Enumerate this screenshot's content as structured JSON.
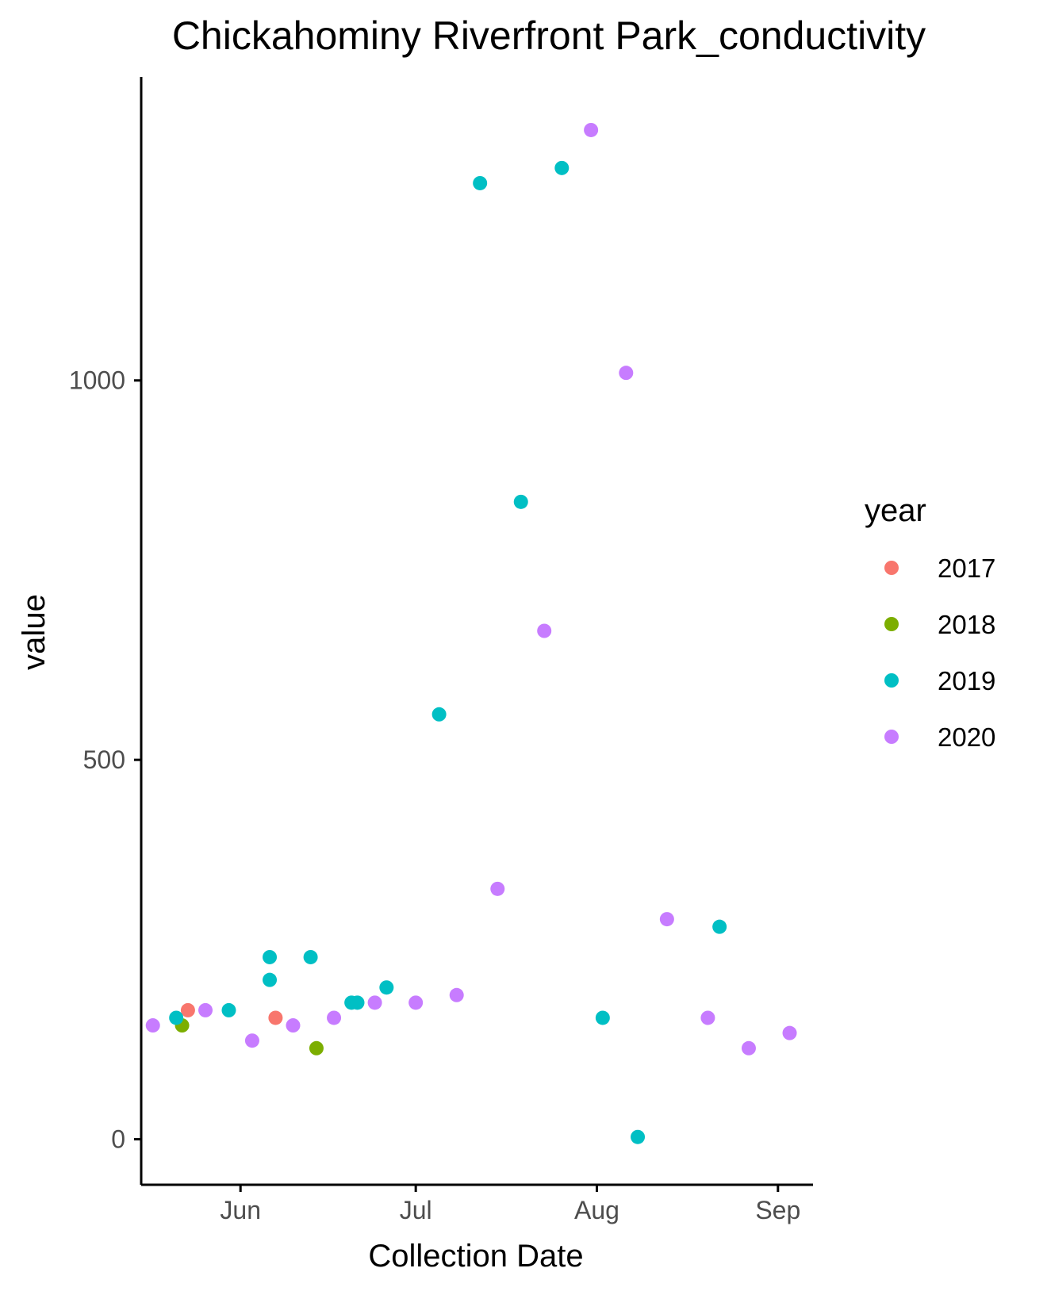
{
  "chart_data": {
    "type": "scatter",
    "title": "Chickahominy Riverfront Park_conductivity",
    "xlabel": "Collection Date",
    "ylabel": "value",
    "x_type": "date",
    "xlim": [
      "2020-05-15",
      "2020-09-07"
    ],
    "ylim": [
      -60,
      1400
    ],
    "x_ticks": [
      {
        "label": "Jun",
        "value": "2020-06-01"
      },
      {
        "label": "Jul",
        "value": "2020-07-01"
      },
      {
        "label": "Aug",
        "value": "2020-08-01"
      },
      {
        "label": "Sep",
        "value": "2020-09-01"
      }
    ],
    "y_ticks": [
      0,
      500,
      1000
    ],
    "grid": false,
    "legend": {
      "title": "year",
      "position": "right"
    },
    "series": [
      {
        "name": "2017",
        "color": "#F8766D",
        "points": [
          {
            "x": "2020-05-23",
            "y": 170
          },
          {
            "x": "2020-06-07",
            "y": 160
          }
        ]
      },
      {
        "name": "2018",
        "color": "#7CAE00",
        "points": [
          {
            "x": "2020-05-22",
            "y": 150
          },
          {
            "x": "2020-06-14",
            "y": 120
          }
        ]
      },
      {
        "name": "2019",
        "color": "#00BFC4",
        "points": [
          {
            "x": "2020-05-21",
            "y": 160
          },
          {
            "x": "2020-05-30",
            "y": 170
          },
          {
            "x": "2020-06-06",
            "y": 240
          },
          {
            "x": "2020-06-06",
            "y": 210
          },
          {
            "x": "2020-06-13",
            "y": 240
          },
          {
            "x": "2020-06-20",
            "y": 180
          },
          {
            "x": "2020-06-21",
            "y": 180
          },
          {
            "x": "2020-06-26",
            "y": 200
          },
          {
            "x": "2020-07-05",
            "y": 560
          },
          {
            "x": "2020-07-12",
            "y": 1260
          },
          {
            "x": "2020-07-19",
            "y": 840
          },
          {
            "x": "2020-07-26",
            "y": 1280
          },
          {
            "x": "2020-08-02",
            "y": 160
          },
          {
            "x": "2020-08-08",
            "y": 3
          },
          {
            "x": "2020-08-22",
            "y": 280
          }
        ]
      },
      {
        "name": "2020",
        "color": "#C77CFF",
        "points": [
          {
            "x": "2020-05-17",
            "y": 150
          },
          {
            "x": "2020-05-26",
            "y": 170
          },
          {
            "x": "2020-06-03",
            "y": 130
          },
          {
            "x": "2020-06-10",
            "y": 150
          },
          {
            "x": "2020-06-17",
            "y": 160
          },
          {
            "x": "2020-06-24",
            "y": 180
          },
          {
            "x": "2020-07-01",
            "y": 180
          },
          {
            "x": "2020-07-08",
            "y": 190
          },
          {
            "x": "2020-07-15",
            "y": 330
          },
          {
            "x": "2020-07-23",
            "y": 670
          },
          {
            "x": "2020-07-31",
            "y": 1330
          },
          {
            "x": "2020-08-06",
            "y": 1010
          },
          {
            "x": "2020-08-13",
            "y": 290
          },
          {
            "x": "2020-08-20",
            "y": 160
          },
          {
            "x": "2020-08-27",
            "y": 120
          },
          {
            "x": "2020-09-03",
            "y": 140
          }
        ]
      }
    ]
  }
}
